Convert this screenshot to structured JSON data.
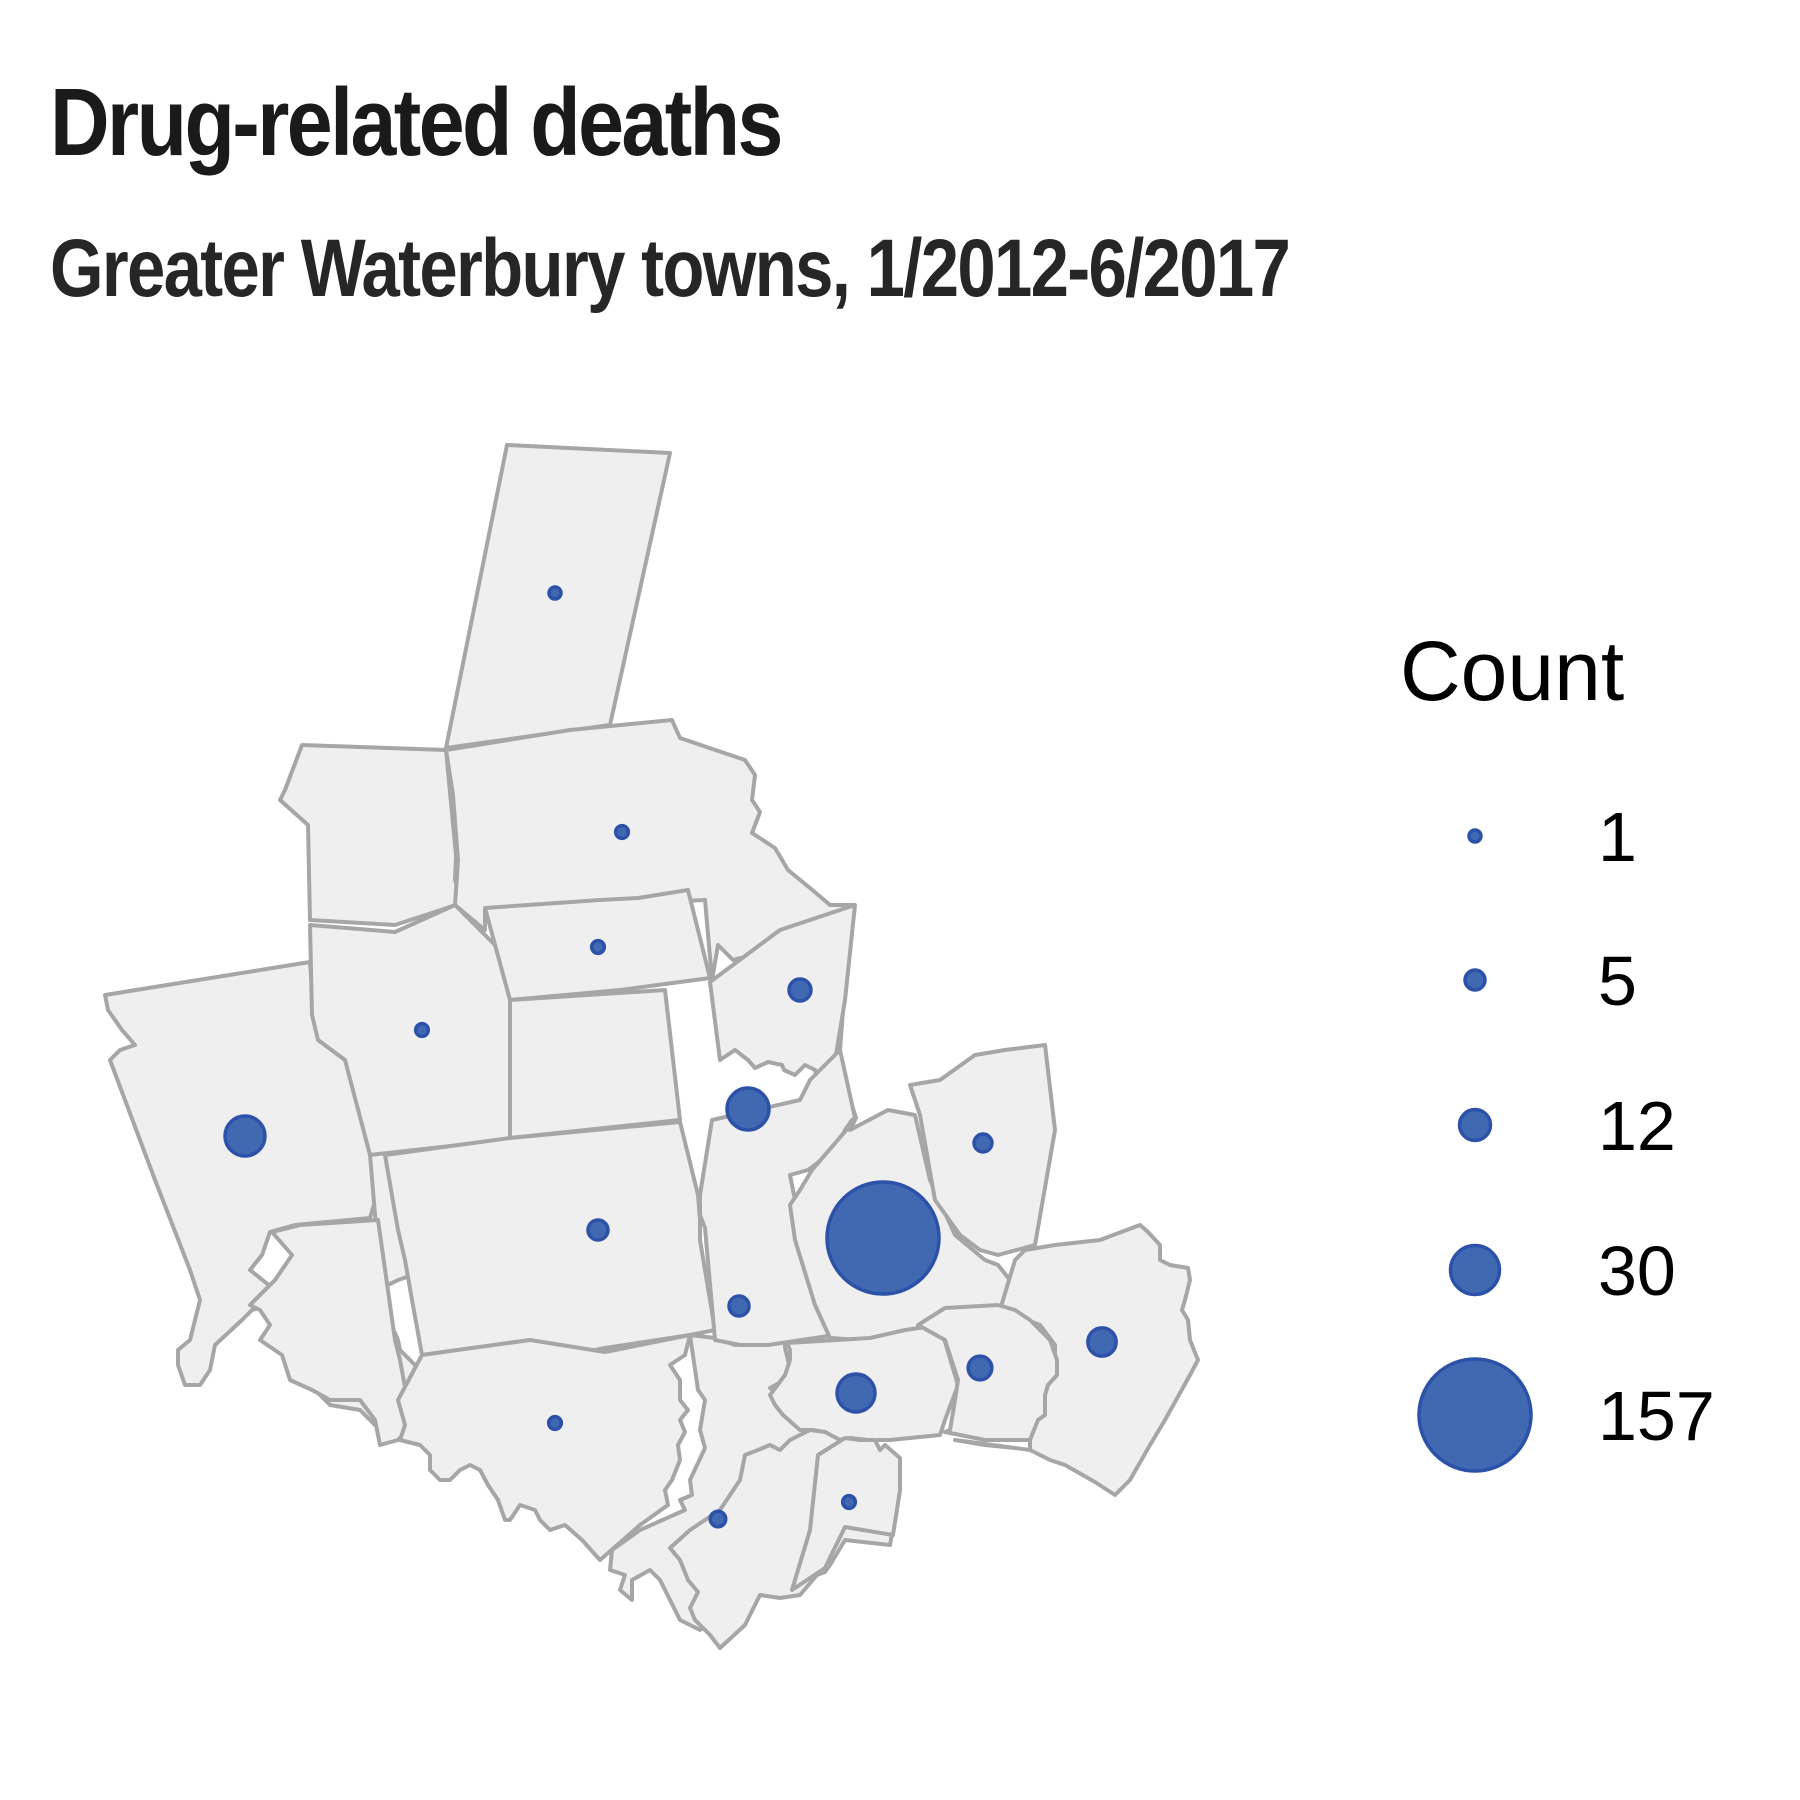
{
  "title": "Drug-related deaths",
  "subtitle": "Greater Waterbury towns, 1/2012-6/2017",
  "colors": {
    "town_fill": "#efefef",
    "town_border": "#a6a6a6",
    "bubble_fill": "#4169b1",
    "bubble_border": "#2b51a8"
  },
  "legend": {
    "title": "Count",
    "items": [
      {
        "label": "1",
        "value": 1
      },
      {
        "label": "5",
        "value": 5
      },
      {
        "label": "12",
        "value": 12
      },
      {
        "label": "30",
        "value": 30
      },
      {
        "label": "157",
        "value": 157
      }
    ]
  },
  "chart_data": {
    "type": "bubble-map",
    "size_variable": "Count",
    "bubbles": [
      {
        "value": 1
      },
      {
        "value": 2
      },
      {
        "value": 2
      },
      {
        "value": 2
      },
      {
        "value": 6
      },
      {
        "value": 20
      },
      {
        "value": 22
      },
      {
        "value": 4
      },
      {
        "value": 157
      },
      {
        "value": 5
      },
      {
        "value": 5
      },
      {
        "value": 2
      },
      {
        "value": 18
      },
      {
        "value": 3
      },
      {
        "value": 7
      },
      {
        "value": 10
      },
      {
        "value": 2
      }
    ]
  }
}
